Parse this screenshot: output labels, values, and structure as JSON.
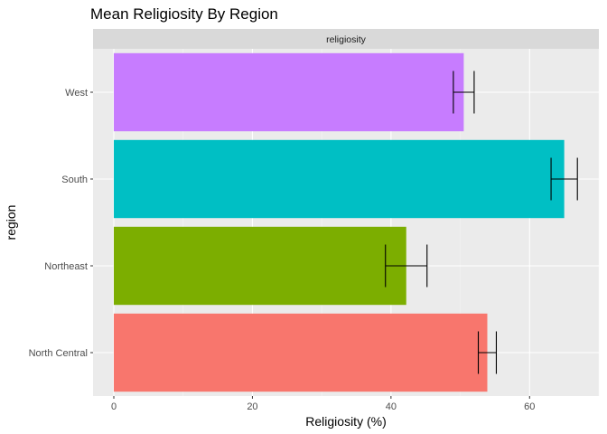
{
  "chart_data": {
    "type": "bar",
    "orientation": "horizontal",
    "title": "Mean Religiosity By Region",
    "facet_label": "religiosity",
    "xlabel": "Religiosity (%)",
    "ylabel": "region",
    "xlim": [
      -3,
      70
    ],
    "xticks": [
      0,
      20,
      40,
      60
    ],
    "grid": true,
    "legend": "none",
    "categories": [
      "North Central",
      "Northeast",
      "South",
      "West"
    ],
    "values": [
      53.9,
      42.2,
      65.0,
      50.5
    ],
    "error_low": [
      52.6,
      39.2,
      63.1,
      49.0
    ],
    "error_high": [
      55.2,
      45.2,
      66.9,
      52.0
    ],
    "colors": [
      "#F8766D",
      "#7CAE00",
      "#00BFC4",
      "#C77CFF"
    ]
  }
}
